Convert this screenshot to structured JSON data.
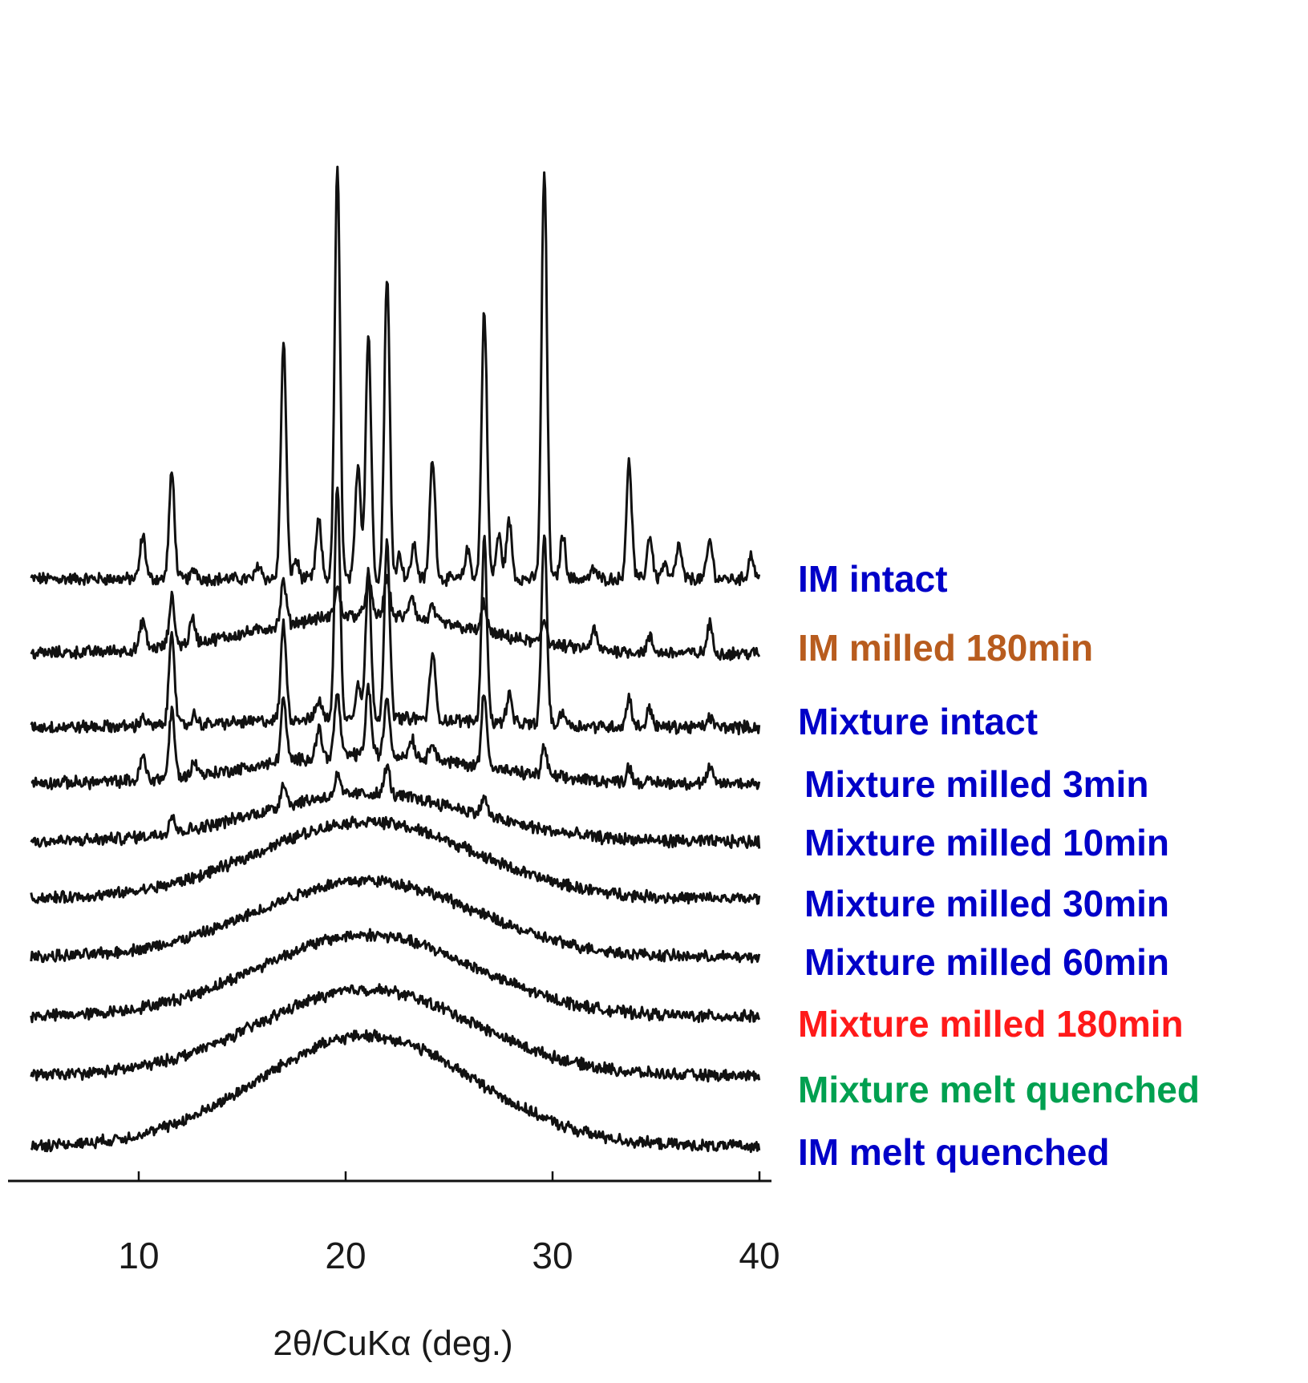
{
  "chart_data": {
    "type": "line",
    "xlabel": "2θ/CuKα (deg.)",
    "xlim": [
      5,
      40
    ],
    "xticks": [
      10,
      20,
      30,
      40
    ],
    "grid": false,
    "layout_note": "stacked waterfall of diffractograms (vertically offset, no y-axis)",
    "series": [
      {
        "name": "IM intact",
        "color": "#0000c8",
        "baseline": 0,
        "peaks": [
          [
            10.2,
            0.9
          ],
          [
            11.6,
            2.2
          ],
          [
            12.7,
            0.2
          ],
          [
            15.8,
            0.3
          ],
          [
            17.0,
            4.9
          ],
          [
            17.6,
            0.4
          ],
          [
            18.7,
            1.2
          ],
          [
            19.6,
            8.5
          ],
          [
            20.6,
            2.4
          ],
          [
            21.1,
            5.1
          ],
          [
            22.0,
            6.3
          ],
          [
            22.6,
            0.5
          ],
          [
            23.3,
            0.7
          ],
          [
            24.2,
            2.5
          ],
          [
            25.9,
            0.6
          ],
          [
            26.7,
            5.6
          ],
          [
            27.4,
            0.9
          ],
          [
            27.9,
            1.2
          ],
          [
            29.6,
            8.5
          ],
          [
            30.5,
            0.9
          ],
          [
            32.0,
            0.2
          ],
          [
            33.7,
            2.4
          ],
          [
            34.7,
            0.9
          ],
          [
            35.4,
            0.3
          ],
          [
            36.1,
            0.7
          ],
          [
            37.6,
            0.8
          ],
          [
            39.6,
            0.5
          ]
        ],
        "halo": 0
      },
      {
        "name": "IM milled 180min",
        "color": "#b85c1e",
        "baseline": 0,
        "peaks": [
          [
            10.2,
            0.6
          ],
          [
            11.6,
            1.0
          ],
          [
            12.6,
            0.5
          ],
          [
            17.0,
            0.9
          ],
          [
            19.6,
            0.6
          ],
          [
            21.1,
            0.8
          ],
          [
            22.0,
            0.8
          ],
          [
            23.2,
            0.5
          ],
          [
            24.2,
            0.3
          ],
          [
            26.7,
            0.6
          ],
          [
            29.6,
            0.5
          ],
          [
            32.0,
            0.4
          ],
          [
            34.7,
            0.3
          ],
          [
            37.6,
            0.6
          ]
        ],
        "halo": 0.8
      },
      {
        "name": "Mixture intact",
        "color": "#0000c8",
        "baseline": 0,
        "peaks": [
          [
            10.2,
            0.2
          ],
          [
            11.6,
            2.0
          ],
          [
            12.7,
            0.2
          ],
          [
            17.0,
            2.0
          ],
          [
            18.7,
            0.4
          ],
          [
            19.6,
            4.8
          ],
          [
            20.6,
            0.7
          ],
          [
            21.1,
            3.0
          ],
          [
            22.0,
            3.6
          ],
          [
            24.2,
            1.4
          ],
          [
            26.7,
            3.8
          ],
          [
            27.9,
            0.6
          ],
          [
            29.6,
            4.0
          ],
          [
            30.5,
            0.3
          ],
          [
            33.7,
            0.6
          ],
          [
            34.7,
            0.4
          ],
          [
            37.6,
            0.2
          ]
        ],
        "halo": 0.2
      },
      {
        "name": "Mixture milled 3min",
        "color": "#0000c8",
        "baseline": 0,
        "peaks": [
          [
            10.2,
            0.5
          ],
          [
            11.6,
            1.4
          ],
          [
            12.7,
            0.3
          ],
          [
            17.0,
            1.3
          ],
          [
            18.7,
            0.6
          ],
          [
            19.6,
            1.3
          ],
          [
            21.1,
            1.4
          ],
          [
            22.0,
            1.2
          ],
          [
            23.2,
            0.4
          ],
          [
            24.2,
            0.4
          ],
          [
            26.7,
            1.6
          ],
          [
            29.6,
            0.6
          ],
          [
            33.7,
            0.3
          ],
          [
            37.6,
            0.3
          ]
        ],
        "halo": 0.6
      },
      {
        "name": "Mixture milled 10min",
        "color": "#0000c8",
        "baseline": 0,
        "peaks": [
          [
            11.6,
            0.4
          ],
          [
            17.0,
            0.5
          ],
          [
            19.6,
            0.4
          ],
          [
            22.0,
            0.6
          ],
          [
            26.7,
            0.4
          ]
        ],
        "halo": 1.0
      },
      {
        "name": "Mixture milled 30min",
        "color": "#0000c8",
        "baseline": 0,
        "peaks": [],
        "halo": 1.6
      },
      {
        "name": "Mixture milled 60min",
        "color": "#0000c8",
        "baseline": 0,
        "peaks": [],
        "halo": 1.6
      },
      {
        "name": "Mixture milled 180min",
        "color": "#ff1a1a",
        "baseline": 0,
        "peaks": [],
        "halo": 1.7
      },
      {
        "name": "Mixture melt quenched",
        "color": "#00a050",
        "baseline": 0,
        "peaks": [],
        "halo": 1.8
      },
      {
        "name": "IM melt quenched",
        "color": "#0000c8",
        "baseline": 0,
        "peaks": [],
        "halo": 2.3
      }
    ]
  }
}
